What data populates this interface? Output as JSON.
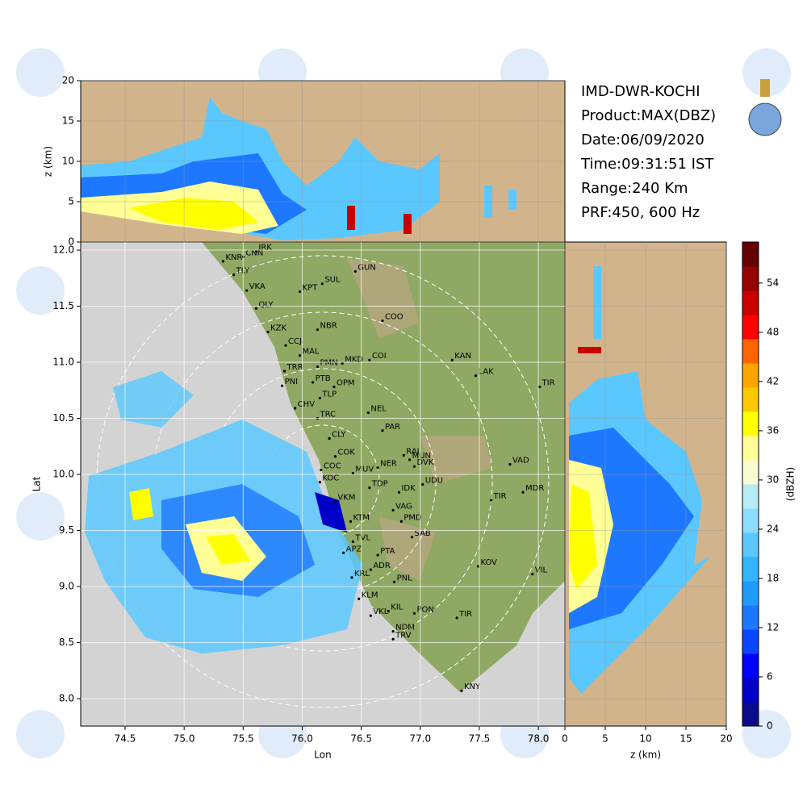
{
  "chart_data": {
    "type": "map",
    "title_lines": [
      "IMD-DWR-KOCHI",
      "Product:MAX(DBZ)",
      "Date:06/09/2020",
      "Time:09:31:51 IST",
      "Range:240 Km",
      "PRF:450, 600 Hz"
    ],
    "x_label": "Lon",
    "y_label": "Lat",
    "xlim": [
      74.124,
      78.225
    ],
    "ylim": [
      7.755,
      12.072
    ],
    "xticks": [
      74.5,
      {
        "value": 75,
        "label": "75.0"
      },
      75.5,
      {
        "value": 76,
        "label": "76.0"
      },
      76.5,
      {
        "value": 77,
        "label": "77.0"
      },
      77.5,
      {
        "value": 78,
        "label": "78.0"
      }
    ],
    "yticks": [
      {
        "value": 8,
        "label": "8.0"
      },
      8.5,
      {
        "value": 9,
        "label": "9.0"
      },
      9.5,
      {
        "value": 10,
        "label": "10.0"
      },
      10.5,
      {
        "value": 11,
        "label": "11.0"
      },
      11.5,
      {
        "value": 12,
        "label": "12.0"
      }
    ],
    "grid": true,
    "land_color": "#8fa863",
    "sea_color": "#d3d3d3",
    "panel_color": "#d2b48c",
    "top_panel": {
      "y_label": "z (km)",
      "ylim": [
        0,
        20
      ],
      "yticks": [
        0,
        5,
        10,
        15,
        20
      ]
    },
    "side_panel": {
      "x_label": "z (km)",
      "xlim": [
        0,
        20
      ],
      "xticks": [
        0,
        5,
        10,
        15,
        20
      ]
    },
    "colorbar": {
      "label": "(dBZH)",
      "lim": [
        0,
        59
      ],
      "ticks": [
        0,
        6,
        12,
        18,
        24,
        30,
        36,
        42,
        48,
        54
      ],
      "colors": [
        "#0a0a8c",
        "#0000c8",
        "#0000ff",
        "#0a46ff",
        "#1e78ff",
        "#1e9bff",
        "#32b4ff",
        "#5ac8ff",
        "#8cdcff",
        "#b4ebf5",
        "#fafad2",
        "#ffff96",
        "#ffff00",
        "#ffc800",
        "#ffa500",
        "#ff6400",
        "#ff0000",
        "#c80000",
        "#960000",
        "#640000"
      ]
    },
    "places": [
      {
        "label": "IRK",
        "lon": 75.61,
        "lat": 11.99
      },
      {
        "label": "CNN",
        "lon": 75.5,
        "lat": 11.94
      },
      {
        "label": "KNR",
        "lon": 75.33,
        "lat": 11.9
      },
      {
        "label": "TLY",
        "lon": 75.42,
        "lat": 11.78
      },
      {
        "label": "VKA",
        "lon": 75.53,
        "lat": 11.64
      },
      {
        "label": "KPT",
        "lon": 75.98,
        "lat": 11.63
      },
      {
        "label": "SUL",
        "lon": 76.17,
        "lat": 11.7
      },
      {
        "label": "GUN",
        "lon": 76.45,
        "lat": 11.81
      },
      {
        "label": "QLY",
        "lon": 75.61,
        "lat": 11.48
      },
      {
        "label": "NBR",
        "lon": 76.13,
        "lat": 11.29
      },
      {
        "label": "COO",
        "lon": 76.68,
        "lat": 11.37
      },
      {
        "label": "KZK",
        "lon": 75.71,
        "lat": 11.27
      },
      {
        "label": "CCJ",
        "lon": 75.86,
        "lat": 11.15
      },
      {
        "label": "MAL",
        "lon": 75.98,
        "lat": 11.06
      },
      {
        "label": "MKD",
        "lon": 76.34,
        "lat": 10.99
      },
      {
        "label": "COI",
        "lon": 76.57,
        "lat": 11.02
      },
      {
        "label": "KAN",
        "lon": 77.27,
        "lat": 11.02
      },
      {
        "label": "TRR",
        "lon": 75.85,
        "lat": 10.92
      },
      {
        "label": "PMN",
        "lon": 76.13,
        "lat": 10.96
      },
      {
        "label": "LAK",
        "lon": 77.47,
        "lat": 10.88
      },
      {
        "label": "TIR",
        "lon": 78.01,
        "lat": 10.78
      },
      {
        "label": "PNI",
        "lon": 75.83,
        "lat": 10.79
      },
      {
        "label": "PTB",
        "lon": 76.09,
        "lat": 10.82
      },
      {
        "label": "OPM",
        "lon": 76.27,
        "lat": 10.78
      },
      {
        "label": "TLP",
        "lon": 76.15,
        "lat": 10.68
      },
      {
        "label": "CHV",
        "lon": 75.94,
        "lat": 10.59
      },
      {
        "label": "NEL",
        "lon": 76.56,
        "lat": 10.55
      },
      {
        "label": "TRC",
        "lon": 76.13,
        "lat": 10.5
      },
      {
        "label": "PAR",
        "lon": 76.68,
        "lat": 10.39
      },
      {
        "label": "CLY",
        "lon": 76.23,
        "lat": 10.32
      },
      {
        "label": "COK",
        "lon": 76.28,
        "lat": 10.16
      },
      {
        "label": "RAJ",
        "lon": 76.86,
        "lat": 10.17
      },
      {
        "label": "MUN",
        "lon": 76.91,
        "lat": 10.13
      },
      {
        "label": "COC",
        "lon": 76.16,
        "lat": 10.04
      },
      {
        "label": "NER",
        "lon": 76.64,
        "lat": 10.06
      },
      {
        "label": "DVK",
        "lon": 76.95,
        "lat": 10.07
      },
      {
        "label": "MUV",
        "lon": 76.43,
        "lat": 10.01
      },
      {
        "label": "VAD",
        "lon": 77.76,
        "lat": 10.09
      },
      {
        "label": "KOC",
        "lon": 76.15,
        "lat": 9.93
      },
      {
        "label": "TDP",
        "lon": 76.57,
        "lat": 9.88
      },
      {
        "label": "UDU",
        "lon": 77.02,
        "lat": 9.91
      },
      {
        "label": "IDK",
        "lon": 76.82,
        "lat": 9.84
      },
      {
        "label": "TIR",
        "lon": 77.6,
        "lat": 9.77
      },
      {
        "label": "MDR",
        "lon": 77.87,
        "lat": 9.84
      },
      {
        "label": "VKM",
        "lon": 76.28,
        "lat": 9.76
      },
      {
        "label": "VAG",
        "lon": 76.77,
        "lat": 9.68
      },
      {
        "label": "PMD",
        "lon": 76.84,
        "lat": 9.58
      },
      {
        "label": "KTM",
        "lon": 76.41,
        "lat": 9.58
      },
      {
        "label": "SAB",
        "lon": 76.93,
        "lat": 9.44
      },
      {
        "label": "TVL",
        "lon": 76.43,
        "lat": 9.4
      },
      {
        "label": "APZ",
        "lon": 76.35,
        "lat": 9.3
      },
      {
        "label": "PTA",
        "lon": 76.64,
        "lat": 9.28
      },
      {
        "label": "ADR",
        "lon": 76.58,
        "lat": 9.15
      },
      {
        "label": "KOV",
        "lon": 77.49,
        "lat": 9.18
      },
      {
        "label": "VIL",
        "lon": 77.95,
        "lat": 9.11
      },
      {
        "label": "KRL",
        "lon": 76.42,
        "lat": 9.08
      },
      {
        "label": "PNL",
        "lon": 76.78,
        "lat": 9.04
      },
      {
        "label": "KLM",
        "lon": 76.48,
        "lat": 8.89
      },
      {
        "label": "KIL",
        "lon": 76.73,
        "lat": 8.78
      },
      {
        "label": "PON",
        "lon": 76.95,
        "lat": 8.76
      },
      {
        "label": "VKL",
        "lon": 76.58,
        "lat": 8.74
      },
      {
        "label": "TIR",
        "lon": 77.31,
        "lat": 8.72
      },
      {
        "label": "NDM",
        "lon": 76.77,
        "lat": 8.6
      },
      {
        "label": "TRV",
        "lon": 76.77,
        "lat": 8.53
      },
      {
        "label": "KNY",
        "lon": 77.35,
        "lat": 8.07
      }
    ]
  }
}
